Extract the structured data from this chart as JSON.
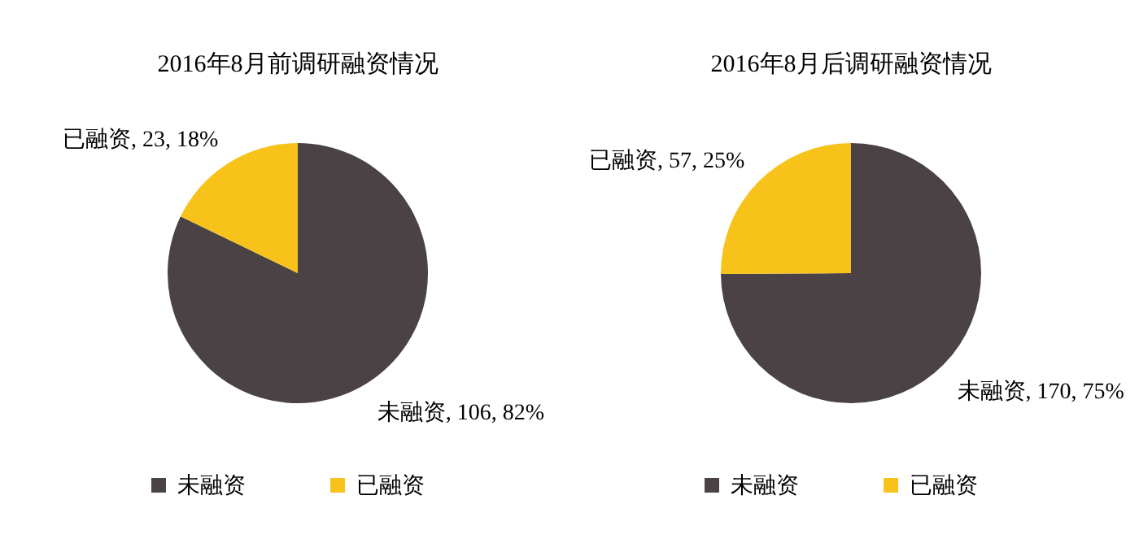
{
  "chart_data": [
    {
      "type": "pie",
      "title": "2016年8月前调研融资情况",
      "categories": [
        "未融资",
        "已融资"
      ],
      "values": [
        106,
        23
      ],
      "colors": [
        "#4b4246",
        "#f7c31b"
      ],
      "value_labels": [
        "未融资, 106, 82%",
        "已融资, 23, 18%"
      ],
      "legend": "bottom"
    },
    {
      "type": "pie",
      "title": "2016年8月后调研融资情况",
      "categories": [
        "未融资",
        "已融资"
      ],
      "values": [
        170,
        57
      ],
      "colors": [
        "#4b4246",
        "#f7c31b"
      ],
      "value_labels": [
        "未融资, 170, 75%",
        "已融资, 57, 25%"
      ],
      "legend": "bottom"
    }
  ]
}
